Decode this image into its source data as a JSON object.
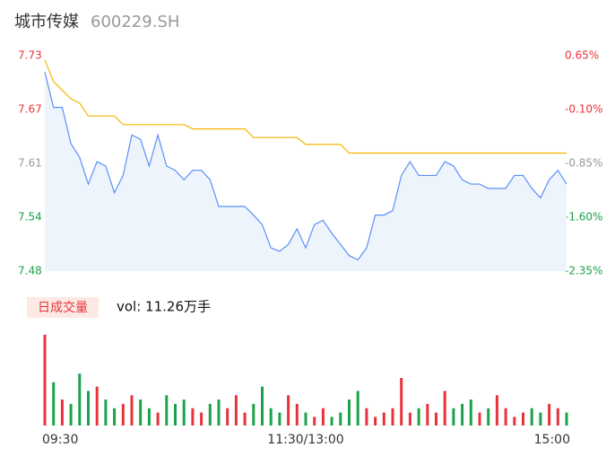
{
  "chart_data": {
    "type": "intraday",
    "title": "城市传媒",
    "subtitle": "600229.SH",
    "volume_label": "日成交量",
    "volume_text": "vol: 11.26万手",
    "x": [
      0,
      4,
      8,
      12,
      16,
      20,
      24,
      28,
      32,
      36,
      40,
      44,
      48,
      52,
      56,
      60,
      64,
      68,
      72,
      76,
      80,
      84,
      88,
      92,
      96,
      100,
      104,
      108,
      112,
      116,
      120,
      124,
      128,
      132,
      136,
      140,
      144,
      148,
      152,
      156,
      160,
      164,
      168,
      172,
      176,
      180,
      184,
      188,
      192,
      196,
      200,
      204,
      208,
      212,
      216,
      220,
      224,
      228,
      232,
      236,
      240
    ],
    "xlim": [
      0,
      240
    ],
    "xticks": [
      {
        "value": 0,
        "label": "09:30"
      },
      {
        "value": 120,
        "label": "11:30/13:00"
      },
      {
        "value": 240,
        "label": "15:00"
      }
    ],
    "series": [
      {
        "name": "price",
        "color": "#5b8ff9",
        "values": [
          7.711,
          7.67,
          7.67,
          7.628,
          7.612,
          7.581,
          7.607,
          7.602,
          7.571,
          7.591,
          7.638,
          7.633,
          7.602,
          7.638,
          7.602,
          7.597,
          7.586,
          7.597,
          7.597,
          7.586,
          7.555,
          7.555,
          7.555,
          7.555,
          7.545,
          7.534,
          7.507,
          7.503,
          7.511,
          7.529,
          7.507,
          7.534,
          7.539,
          7.524,
          7.511,
          7.498,
          7.493,
          7.507,
          7.545,
          7.545,
          7.55,
          7.591,
          7.607,
          7.591,
          7.591,
          7.591,
          7.607,
          7.602,
          7.586,
          7.581,
          7.581,
          7.576,
          7.576,
          7.576,
          7.591,
          7.591,
          7.576,
          7.565,
          7.586,
          7.597,
          7.581
        ]
      },
      {
        "name": "average",
        "color": "#f5b400",
        "values": [
          7.725,
          7.7,
          7.69,
          7.68,
          7.675,
          7.66,
          7.66,
          7.66,
          7.66,
          7.65,
          7.65,
          7.65,
          7.65,
          7.65,
          7.65,
          7.65,
          7.65,
          7.645,
          7.645,
          7.645,
          7.645,
          7.645,
          7.645,
          7.645,
          7.635,
          7.635,
          7.635,
          7.635,
          7.635,
          7.635,
          7.627,
          7.627,
          7.627,
          7.627,
          7.627,
          7.617,
          7.617,
          7.617,
          7.617,
          7.617,
          7.617,
          7.617,
          7.617,
          7.617,
          7.617,
          7.617,
          7.617,
          7.617,
          7.617,
          7.617,
          7.617,
          7.617,
          7.617,
          7.617,
          7.617,
          7.617,
          7.617,
          7.617,
          7.617,
          7.617,
          7.617
        ]
      }
    ],
    "ylim": [
      7.48,
      7.73
    ],
    "yticks": [
      {
        "value": 7.73,
        "label": "7.73"
      },
      {
        "value": 7.6675,
        "label": "7.67"
      },
      {
        "value": 7.605,
        "label": "7.61"
      },
      {
        "value": 7.5425,
        "label": "7.54"
      },
      {
        "value": 7.48,
        "label": "7.48"
      }
    ],
    "y2lim": [
      -2.35,
      0.65
    ],
    "y2ticks": [
      {
        "value": 0.65,
        "label": "0.65%"
      },
      {
        "value": -0.1,
        "label": "-0.10%"
      },
      {
        "value": -0.85,
        "label": "-0.85%"
      },
      {
        "value": -1.6,
        "label": "-1.60%"
      },
      {
        "value": -2.35,
        "label": "-2.35%"
      }
    ],
    "tick_colors": [
      "#e8333a",
      "#e8333a",
      "#999999",
      "#1aa34a",
      "#1aa34a"
    ],
    "volume": [
      105,
      50,
      30,
      25,
      60,
      40,
      45,
      30,
      20,
      25,
      35,
      30,
      20,
      15,
      35,
      25,
      30,
      20,
      15,
      25,
      30,
      20,
      35,
      15,
      25,
      45,
      20,
      15,
      35,
      25,
      15,
      10,
      20,
      10,
      15,
      30,
      40,
      20,
      10,
      15,
      20,
      55,
      15,
      20,
      25,
      15,
      40,
      20,
      25,
      30,
      15,
      20,
      35,
      20,
      10,
      15,
      20,
      15,
      25,
      20,
      15
    ],
    "volume_ylim": [
      0,
      110
    ],
    "up_color": "#e8333a",
    "down_color": "#1aa34a",
    "area_color": "#eef4fc"
  }
}
